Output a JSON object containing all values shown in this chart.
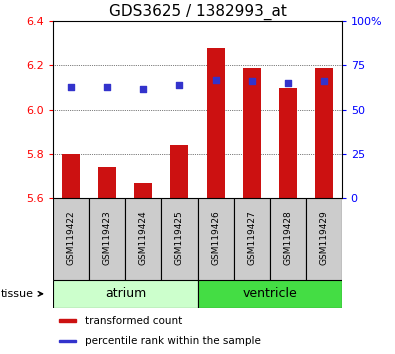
{
  "title": "GDS3625 / 1382993_at",
  "samples": [
    "GSM119422",
    "GSM119423",
    "GSM119424",
    "GSM119425",
    "GSM119426",
    "GSM119427",
    "GSM119428",
    "GSM119429"
  ],
  "transformed_counts": [
    5.8,
    5.74,
    5.67,
    5.84,
    6.28,
    6.19,
    6.1,
    6.19
  ],
  "percentile_ranks": [
    63,
    63,
    62,
    64,
    67,
    66,
    65,
    66
  ],
  "bar_bottom": 5.6,
  "ylim_left": [
    5.6,
    6.4
  ],
  "ylim_right": [
    0,
    100
  ],
  "yticks_left": [
    5.6,
    5.8,
    6.0,
    6.2,
    6.4
  ],
  "yticks_right": [
    0,
    25,
    50,
    75,
    100
  ],
  "ytick_labels_right": [
    "0",
    "25",
    "50",
    "75",
    "100%"
  ],
  "bar_color": "#cc1111",
  "dot_color": "#3333cc",
  "grid_color": "#000000",
  "title_fontsize": 11,
  "axis_fontsize": 8,
  "tissue_label": "tissue",
  "legend_items": [
    "transformed count",
    "percentile rank within the sample"
  ],
  "legend_colors": [
    "#cc1111",
    "#3333cc"
  ],
  "atrium_color": "#ccffcc",
  "ventricle_color": "#44dd44",
  "sample_box_color": "#cccccc"
}
